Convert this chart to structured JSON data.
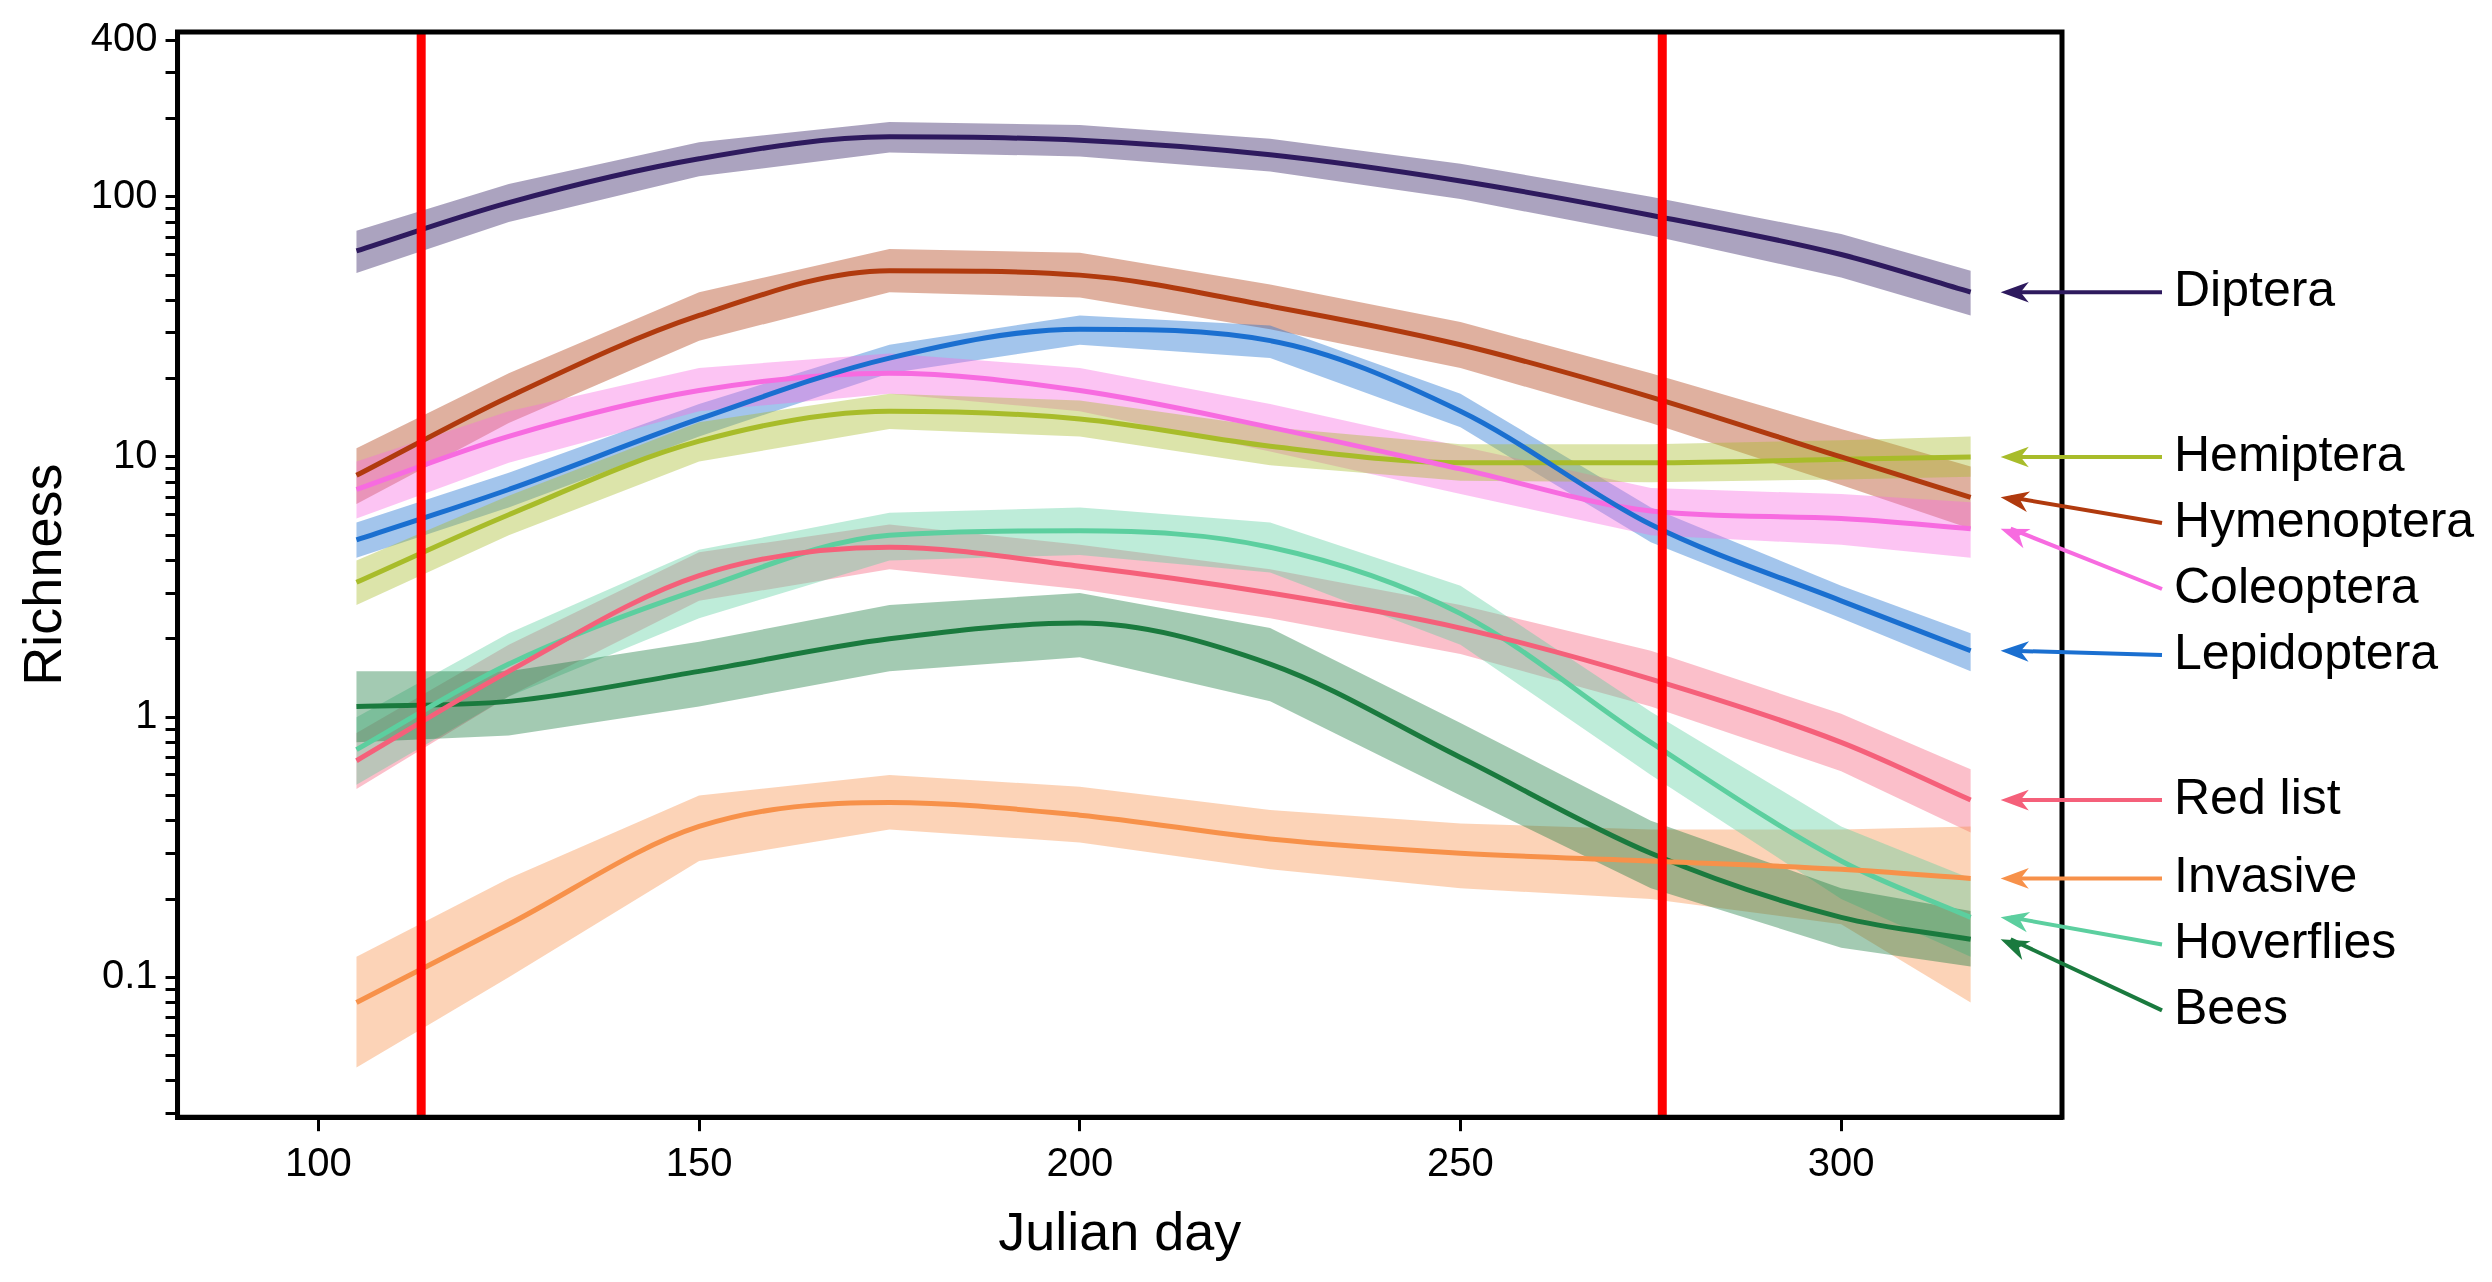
{
  "chart_data": {
    "type": "line",
    "xlabel": "Julian day",
    "ylabel": "Richness",
    "log": "y",
    "grid": false,
    "legend": "right",
    "marker": "none",
    "line_style": "solid",
    "x": [
      105,
      125,
      150,
      175,
      200,
      225,
      250,
      275,
      300,
      317
    ],
    "xlim": [
      81.5,
      329
    ],
    "xticks": [
      100,
      150,
      200,
      250,
      300
    ],
    "ylim": [
      0.029,
      430
    ],
    "yticks": [
      {
        "value": 0.03,
        "label": null
      },
      {
        "value": 0.04,
        "label": null
      },
      {
        "value": 0.05,
        "label": null
      },
      {
        "value": 0.06,
        "label": null
      },
      {
        "value": 0.07,
        "label": null
      },
      {
        "value": 0.08,
        "label": null
      },
      {
        "value": 0.09,
        "label": null
      },
      0.1,
      {
        "value": 0.2,
        "label": null
      },
      {
        "value": 0.3,
        "label": null
      },
      {
        "value": 0.4,
        "label": null
      },
      {
        "value": 0.5,
        "label": null
      },
      {
        "value": 0.6,
        "label": null
      },
      {
        "value": 0.7,
        "label": null
      },
      {
        "value": 0.8,
        "label": null
      },
      {
        "value": 0.9,
        "label": null
      },
      1,
      {
        "value": 2,
        "label": null
      },
      {
        "value": 3,
        "label": null
      },
      {
        "value": 4,
        "label": null
      },
      {
        "value": 5,
        "label": null
      },
      {
        "value": 6,
        "label": null
      },
      {
        "value": 7,
        "label": null
      },
      {
        "value": 8,
        "label": null
      },
      {
        "value": 9,
        "label": null
      },
      10,
      {
        "value": 20,
        "label": null
      },
      {
        "value": 30,
        "label": null
      },
      {
        "value": 40,
        "label": null
      },
      {
        "value": 50,
        "label": null
      },
      {
        "value": 60,
        "label": null
      },
      {
        "value": 70,
        "label": null
      },
      {
        "value": 80,
        "label": null
      },
      {
        "value": 90,
        "label": null
      },
      100,
      {
        "value": 200,
        "label": null
      },
      {
        "value": 300,
        "label": null
      },
      400
    ],
    "ref_lines": [
      {
        "axis": "x",
        "value": 113.5,
        "color": "#ff0000"
      },
      {
        "axis": "x",
        "value": 276.5,
        "color": "#ff0000"
      }
    ],
    "series": [
      {
        "name": "Diptera",
        "color": "#2e1a5e",
        "values": [
          62,
          95,
          140,
          170,
          165,
          145,
          115,
          85,
          60,
          43
        ],
        "lower": [
          51,
          80,
          120,
          148,
          143,
          125,
          98,
          71,
          49,
          35
        ],
        "upper": [
          74,
          112,
          162,
          194,
          189,
          167,
          134,
          100,
          72,
          52
        ]
      },
      {
        "name": "Hymenoptera",
        "color": "#b03a0e",
        "values": [
          8.5,
          17,
          35,
          52,
          50,
          38,
          27,
          17,
          10,
          7
        ],
        "lower": [
          6.6,
          13.5,
          28,
          43,
          41,
          31,
          22,
          13.5,
          7.8,
          5.3
        ],
        "upper": [
          10.8,
          21,
          43,
          63,
          61,
          46,
          33,
          21,
          12.8,
          9.2
        ]
      },
      {
        "name": "Lepidoptera",
        "color": "#1a6fd0",
        "values": [
          4.8,
          7.5,
          14,
          24,
          31,
          28,
          15,
          5.5,
          2.8,
          1.8
        ],
        "lower": [
          4.1,
          6.4,
          12,
          21,
          27,
          24,
          13,
          4.7,
          2.4,
          1.5
        ],
        "upper": [
          5.6,
          8.7,
          16,
          27,
          35,
          32,
          17.5,
          6.4,
          3.2,
          2.1
        ]
      },
      {
        "name": "Coleoptera",
        "color": "#f76be0",
        "values": [
          7.5,
          12,
          18,
          21,
          18,
          13,
          9,
          6.2,
          5.8,
          5.3
        ],
        "lower": [
          5.8,
          9.5,
          15,
          17.5,
          15,
          10.5,
          7.2,
          5,
          4.6,
          4.1
        ],
        "upper": [
          9.6,
          15,
          22,
          25,
          22,
          16,
          11,
          7.6,
          7.2,
          6.7
        ]
      },
      {
        "name": "Hemiptera",
        "color": "#a8bc2a",
        "values": [
          3.3,
          6,
          11.5,
          15,
          14,
          11,
          9.5,
          9.5,
          9.8,
          10
        ],
        "lower": [
          2.7,
          5,
          9.6,
          12.8,
          12,
          9.3,
          8.1,
          8,
          8.2,
          8.4
        ],
        "upper": [
          4,
          7.1,
          13.6,
          17.5,
          16.5,
          13,
          11.2,
          11.2,
          11.6,
          12
        ]
      },
      {
        "name": "Red list",
        "color": "#f5607a",
        "values": [
          0.68,
          1.5,
          3.5,
          4.5,
          3.8,
          3,
          2.2,
          1.4,
          0.8,
          0.48
        ],
        "lower": [
          0.53,
          1.2,
          2.8,
          3.7,
          3.1,
          2.4,
          1.75,
          1.1,
          0.62,
          0.36
        ],
        "upper": [
          0.87,
          1.9,
          4.3,
          5.5,
          4.6,
          3.7,
          2.7,
          1.8,
          1.03,
          0.63
        ]
      },
      {
        "name": "Invasive",
        "color": "#f7914a",
        "values": [
          0.08,
          0.16,
          0.38,
          0.47,
          0.42,
          0.34,
          0.3,
          0.28,
          0.26,
          0.24
        ],
        "lower": [
          0.045,
          0.1,
          0.28,
          0.37,
          0.33,
          0.26,
          0.22,
          0.2,
          0.16,
          0.08
        ],
        "upper": [
          0.12,
          0.24,
          0.5,
          0.6,
          0.54,
          0.44,
          0.39,
          0.37,
          0.37,
          0.38
        ]
      },
      {
        "name": "Hoverflies",
        "color": "#5ccf9f",
        "values": [
          0.75,
          1.6,
          3.1,
          5,
          5.2,
          4.5,
          2.5,
          0.8,
          0.28,
          0.17
        ],
        "lower": [
          0.55,
          1.2,
          2.4,
          4,
          4.2,
          3.6,
          1.9,
          0.6,
          0.2,
          0.12
        ],
        "upper": [
          1,
          2.1,
          4.4,
          6.1,
          6.4,
          5.6,
          3.2,
          1.05,
          0.38,
          0.24
        ]
      },
      {
        "name": "Bees",
        "color": "#1a7a3e",
        "values": [
          1.1,
          1.15,
          1.5,
          2,
          2.3,
          1.6,
          0.7,
          0.3,
          0.17,
          0.14
        ],
        "lower": [
          0.8,
          0.85,
          1.1,
          1.5,
          1.7,
          1.15,
          0.5,
          0.22,
          0.13,
          0.11
        ],
        "upper": [
          1.5,
          1.5,
          1.95,
          2.7,
          3,
          2.2,
          0.95,
          0.4,
          0.22,
          0.18
        ]
      }
    ]
  }
}
